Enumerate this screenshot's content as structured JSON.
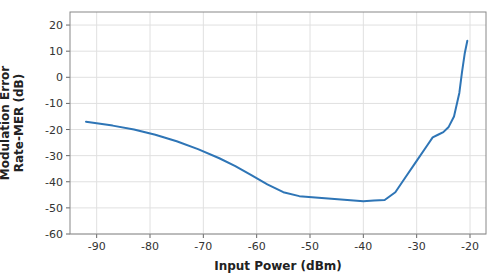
{
  "chart_data": {
    "type": "line",
    "xlabel": "Input Power (dBm)",
    "ylabel": "Modulation Error\nRate-MER (dB)",
    "xlim": [
      -95,
      -17
    ],
    "ylim": [
      -60,
      25
    ],
    "xticks": [
      -90,
      -80,
      -70,
      -60,
      -50,
      -40,
      -30,
      -20
    ],
    "yticks": [
      -60,
      -50,
      -40,
      -30,
      -20,
      -10,
      0,
      10,
      20
    ],
    "color": "#2E75B6",
    "grid": true,
    "x": [
      -92,
      -87,
      -83,
      -79,
      -75,
      -71,
      -67,
      -64,
      -61,
      -58,
      -55,
      -52,
      -49,
      -46,
      -43,
      -40,
      -38,
      -36,
      -34,
      -32,
      -30,
      -28,
      -27,
      -26,
      -25,
      -24,
      -23,
      -22,
      -21.5,
      -21,
      -20.5
    ],
    "y": [
      -17,
      -18.5,
      -20,
      -22,
      -24.5,
      -27.5,
      -31,
      -34,
      -37.5,
      -41,
      -44,
      -45.5,
      -46,
      -46.5,
      -47,
      -47.5,
      -47.2,
      -47,
      -44,
      -38,
      -32,
      -26,
      -23,
      -22,
      -21,
      -19,
      -15,
      -6,
      2,
      9,
      14
    ]
  }
}
